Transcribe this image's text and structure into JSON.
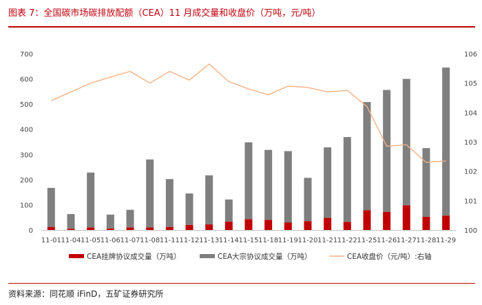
{
  "title": "图表 7：全国碳市场碳排放配额（CEA）11 月成交量和收盘价（万吨，元/吨）",
  "source": "资料来源：同花顺 iFinD，五矿证券研究所",
  "colors": {
    "accent": "#c0000b",
    "listed": "#c00000",
    "block": "#7f7f7f",
    "price": "#f4b183"
  },
  "chart_data": {
    "type": "bar",
    "categories": [
      "11-01",
      "11-04",
      "11-05",
      "11-06",
      "11-07",
      "11-08",
      "11-11",
      "11-12",
      "11-13",
      "11-14",
      "11-15",
      "11-18",
      "11-19",
      "11-20",
      "11-21",
      "11-22",
      "11-25",
      "11-26",
      "11-27",
      "11-28",
      "11-29"
    ],
    "series": [
      {
        "name": "CEA挂牌协议成交量（万吨）",
        "kind": "bar",
        "axis": "left",
        "values": [
          12,
          5,
          10,
          6,
          10,
          10,
          12,
          20,
          22,
          33,
          43,
          40,
          30,
          35,
          48,
          32,
          78,
          72,
          98,
          52,
          57
        ]
      },
      {
        "name": "CEA大宗协议成交量（万吨）",
        "kind": "bar",
        "axis": "left",
        "values": [
          155,
          58,
          218,
          55,
          70,
          270,
          190,
          125,
          195,
          88,
          305,
          278,
          283,
          172,
          280,
          337,
          430,
          484,
          502,
          273,
          588
        ]
      },
      {
        "name": "CEA收盘价（元/吨）:右轴",
        "kind": "line",
        "axis": "right",
        "values": [
          104.4,
          104.7,
          105.0,
          105.2,
          105.4,
          105.0,
          105.4,
          105.1,
          105.65,
          105.05,
          104.8,
          104.6,
          104.9,
          104.85,
          104.7,
          104.75,
          104.2,
          102.85,
          102.9,
          102.3,
          102.35
        ]
      }
    ],
    "stacked": true,
    "y_left": {
      "min": 0,
      "max": 700,
      "step": 100,
      "ticks": [
        "0",
        "100",
        "200",
        "300",
        "400",
        "500",
        "600",
        "700"
      ]
    },
    "y_right": {
      "min": 100,
      "max": 106,
      "step": 1,
      "ticks": [
        "100",
        "101",
        "102",
        "103",
        "104",
        "105",
        "106"
      ]
    },
    "legend_position": "bottom",
    "grid": false
  }
}
